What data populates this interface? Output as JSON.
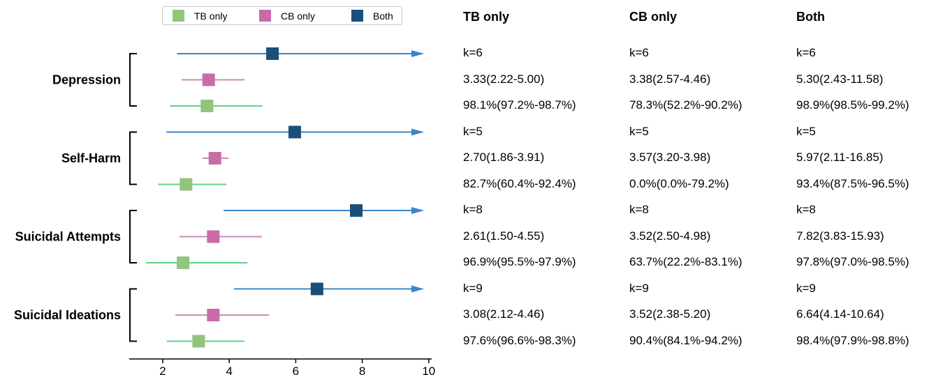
{
  "chart_data": {
    "type": "forest",
    "legend": [
      {
        "name": "TB only",
        "color": "#93c47d"
      },
      {
        "name": "CB only",
        "color": "#c86ba6"
      },
      {
        "name": "Both",
        "color": "#1a4f7a"
      }
    ],
    "x_ticks": [
      "2",
      "4",
      "6",
      "8",
      "10"
    ],
    "xlim": [
      1.1,
      10.2
    ],
    "groups": [
      {
        "label": "Depression",
        "rows": [
          {
            "series": "Both",
            "est": 5.3,
            "lo": 2.43,
            "hi": 11.58,
            "arrow": true
          },
          {
            "series": "CB only",
            "est": 3.38,
            "lo": 2.57,
            "hi": 4.46,
            "arrow": false
          },
          {
            "series": "TB only",
            "est": 3.33,
            "lo": 2.22,
            "hi": 5.0,
            "arrow": false
          }
        ]
      },
      {
        "label": "Self-Harm",
        "rows": [
          {
            "series": "Both",
            "est": 5.97,
            "lo": 2.11,
            "hi": 16.85,
            "arrow": true
          },
          {
            "series": "CB only",
            "est": 3.57,
            "lo": 3.2,
            "hi": 3.98,
            "arrow": false
          },
          {
            "series": "TB only",
            "est": 2.7,
            "lo": 1.86,
            "hi": 3.91,
            "arrow": false
          }
        ]
      },
      {
        "label": "Suicidal Attempts",
        "rows": [
          {
            "series": "Both",
            "est": 7.82,
            "lo": 3.83,
            "hi": 15.93,
            "arrow": true
          },
          {
            "series": "CB only",
            "est": 3.52,
            "lo": 2.5,
            "hi": 4.98,
            "arrow": false
          },
          {
            "series": "TB only",
            "est": 2.61,
            "lo": 1.5,
            "hi": 4.55,
            "arrow": false
          }
        ]
      },
      {
        "label": "Suicidal Ideations",
        "rows": [
          {
            "series": "Both",
            "est": 6.64,
            "lo": 4.14,
            "hi": 10.64,
            "arrow": true
          },
          {
            "series": "CB only",
            "est": 3.52,
            "lo": 2.38,
            "hi": 5.2,
            "arrow": false
          },
          {
            "series": "TB only",
            "est": 3.08,
            "lo": 2.12,
            "hi": 4.46,
            "arrow": false
          }
        ]
      }
    ],
    "table": {
      "headers": [
        "TB only",
        "CB only",
        "Both"
      ],
      "rows": [
        [
          "k=6",
          "k=6",
          "k=6"
        ],
        [
          "3.33(2.22-5.00)",
          "3.38(2.57-4.46)",
          "5.30(2.43-11.58)"
        ],
        [
          "98.1%(97.2%-98.7%)",
          "78.3%(52.2%-90.2%)",
          "98.9%(98.5%-99.2%)"
        ],
        [
          "k=5",
          "k=5",
          "k=5"
        ],
        [
          "2.70(1.86-3.91)",
          "3.57(3.20-3.98)",
          "5.97(2.11-16.85)"
        ],
        [
          "82.7%(60.4%-92.4%)",
          "0.0%(0.0%-79.2%)",
          "93.4%(87.5%-96.5%)"
        ],
        [
          "k=8",
          "k=8",
          "k=8"
        ],
        [
          "2.61(1.50-4.55)",
          "3.52(2.50-4.98)",
          "7.82(3.83-15.93)"
        ],
        [
          "96.9%(95.5%-97.9%)",
          "63.7%(22.2%-83.1%)",
          "97.8%(97.0%-98.5%)"
        ],
        [
          "k=9",
          "k=9",
          "k=9"
        ],
        [
          "3.08(2.12-4.46)",
          "3.52(2.38-5.20)",
          "6.64(4.14-10.64)"
        ],
        [
          "97.6%(96.6%-98.3%)",
          "90.4%(84.1%-94.2%)",
          "98.4%(97.9%-98.8%)"
        ]
      ]
    },
    "colors": {
      "ci_both": "#3a85c8",
      "ci_cb": "#c98ab5",
      "ci_tb": "#5fd08a"
    }
  }
}
